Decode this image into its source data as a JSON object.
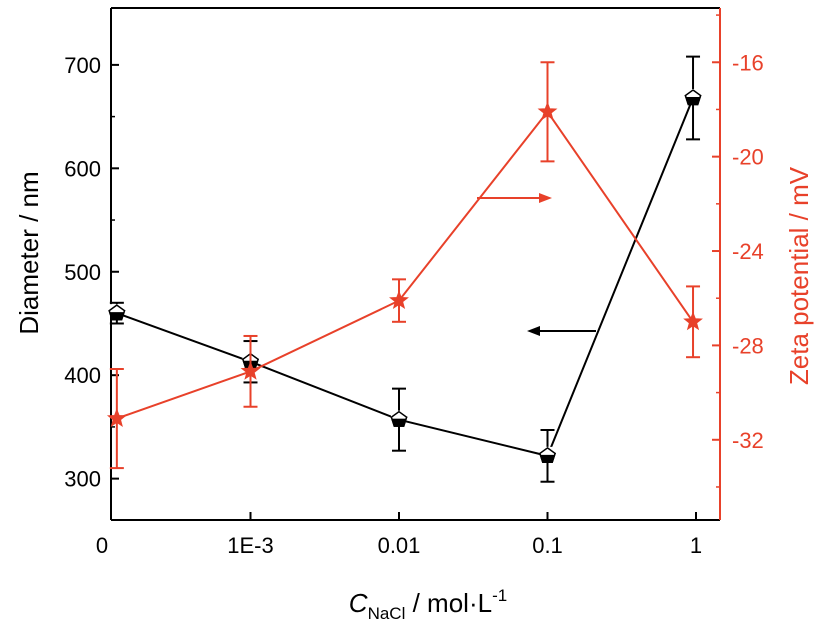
{
  "chart_data": {
    "type": "line",
    "x_categories": [
      "0",
      "1E-3",
      "0.01",
      "0.1",
      "1"
    ],
    "xlabel": {
      "symbol": "C",
      "subscript": "NaCl",
      "unit": " / mol·L",
      "superscript": "-1"
    },
    "y_left": {
      "label": "Diameter / nm",
      "lim": [
        260,
        755
      ],
      "ticks": [
        "300",
        "400",
        "500",
        "600",
        "700"
      ],
      "color": "#000000"
    },
    "y_right": {
      "label": "Zeta potential / mV",
      "lim": [
        -35.4,
        -13.7
      ],
      "ticks": [
        "-32",
        "-28",
        "-24",
        "-20",
        "-16"
      ],
      "color": "#e8412a"
    },
    "series": [
      {
        "axis": "left",
        "marker": "pentagon",
        "color": "#000000",
        "points": [
          {
            "x_index": 0.1,
            "y": 460,
            "err": 10
          },
          {
            "x_index": 1,
            "y": 413,
            "err": 20
          },
          {
            "x_index": 2,
            "y": 357,
            "err": 30
          },
          {
            "x_index": 3,
            "y": 322,
            "err": 25
          },
          {
            "x_index": 3.98,
            "y": 668,
            "err": 40
          }
        ]
      },
      {
        "axis": "right",
        "marker": "star",
        "color": "#e8412a",
        "points": [
          {
            "x_index": 0.1,
            "y": -31.1,
            "err": 2.1
          },
          {
            "x_index": 1,
            "y": -29.1,
            "err": 1.5
          },
          {
            "x_index": 2,
            "y": -26.1,
            "err": 0.9
          },
          {
            "x_index": 3,
            "y": -18.1,
            "err": 2.1
          },
          {
            "x_index": 3.98,
            "y": -27.0,
            "err": 1.5
          }
        ]
      }
    ],
    "annotations": [
      {
        "type": "arrow",
        "direction": "left",
        "color": "#000000",
        "points_to": "left-axis"
      },
      {
        "type": "arrow",
        "direction": "right",
        "color": "#e8412a",
        "points_to": "right-axis"
      }
    ]
  }
}
